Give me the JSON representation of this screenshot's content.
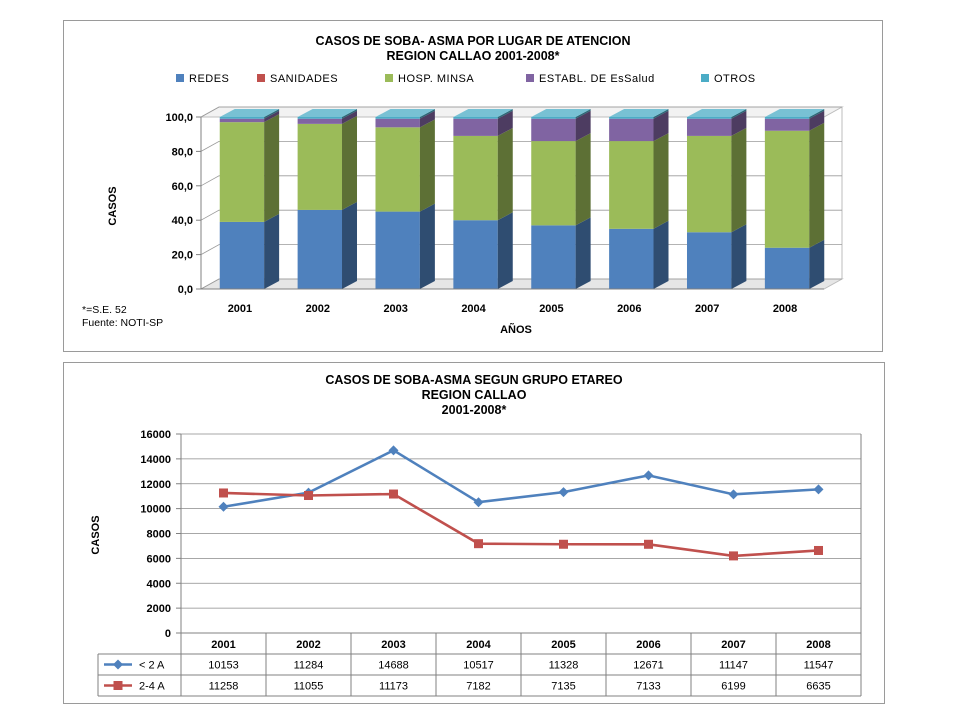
{
  "chart_data": [
    {
      "type": "bar",
      "stacked": true,
      "title_lines": [
        "CASOS DE SOBA- ASMA POR LUGAR DE ATENCION",
        "REGION CALLAO 2001-2008*"
      ],
      "xlabel": "AÑOS",
      "ylabel": "CASOS",
      "ylim": [
        0,
        100
      ],
      "yticks": [
        "0,0",
        "20,0",
        "40,0",
        "60,0",
        "80,0",
        "100,0"
      ],
      "categories": [
        "2001",
        "2002",
        "2003",
        "2004",
        "2005",
        "2006",
        "2007",
        "2008"
      ],
      "legend_position": "top",
      "grid": true,
      "series": [
        {
          "name": "REDES",
          "color": "#4f81bd",
          "values": [
            39,
            46,
            45,
            40,
            37,
            35,
            33,
            24
          ]
        },
        {
          "name": "SANIDADES",
          "color": "#c0504d",
          "values": [
            0,
            0,
            0,
            0,
            0,
            0,
            0,
            0
          ]
        },
        {
          "name": "HOSP. MINSA",
          "color": "#9bbb59",
          "values": [
            58,
            50,
            49,
            49,
            49,
            51,
            56,
            68
          ]
        },
        {
          "name": "ESTABL. DE EsSalud",
          "color": "#8064a2",
          "values": [
            2,
            3,
            5,
            10,
            13,
            13,
            10,
            7
          ]
        },
        {
          "name": "OTROS",
          "color": "#4bacc6",
          "values": [
            1,
            1,
            1,
            1,
            1,
            1,
            1,
            1
          ]
        }
      ],
      "notes": [
        "*=S.E. 52",
        "Fuente: NOTI-SP"
      ]
    },
    {
      "type": "line",
      "title_lines": [
        "CASOS DE SOBA-ASMA SEGUN GRUPO ETAREO",
        "REGION CALLAO",
        "2001-2008*"
      ],
      "ylabel": "CASOS",
      "ylim": [
        0,
        16000
      ],
      "yticks": [
        "0",
        "2000",
        "4000",
        "6000",
        "8000",
        "10000",
        "12000",
        "14000",
        "16000"
      ],
      "categories": [
        "2001",
        "2002",
        "2003",
        "2004",
        "2005",
        "2006",
        "2007",
        "2008"
      ],
      "grid": true,
      "data_table": true,
      "series": [
        {
          "name": "< 2 A",
          "color": "#4f81bd",
          "marker": "diamond",
          "values": [
            10153,
            11284,
            14688,
            10517,
            11328,
            12671,
            11147,
            11547
          ]
        },
        {
          "name": "2-4 A",
          "color": "#c0504d",
          "marker": "square",
          "values": [
            11258,
            11055,
            11173,
            7182,
            7135,
            7133,
            6199,
            6635
          ]
        }
      ]
    }
  ]
}
